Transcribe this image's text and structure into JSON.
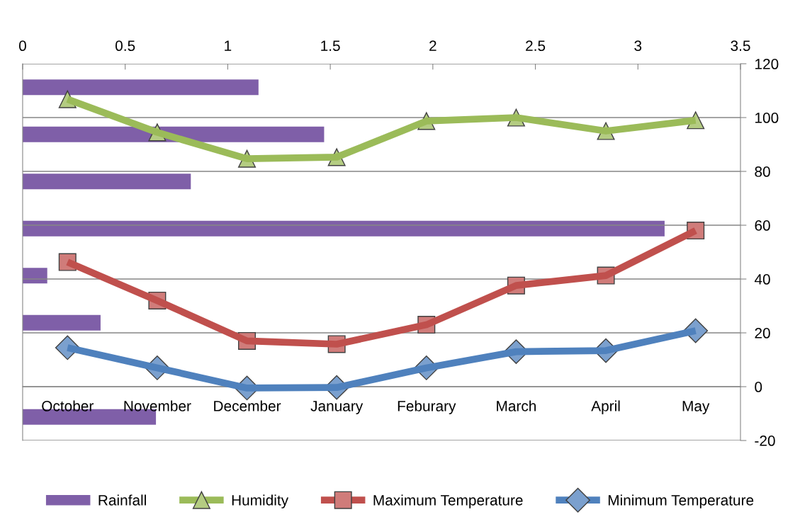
{
  "chart_data": [
    {
      "type": "bar",
      "orientation": "horizontal",
      "categories": [
        null,
        null,
        null,
        null,
        null,
        null,
        null,
        null
      ],
      "series": [
        {
          "name": "Rainfall",
          "color": "#7f5fa8",
          "values": [
            1.15,
            1.47,
            0.82,
            3.13,
            0.12,
            0.38,
            0,
            0.65
          ]
        }
      ],
      "xlim": [
        0,
        3.5
      ],
      "xticks": [
        0,
        0.5,
        1,
        1.5,
        2,
        2.5,
        3,
        3.5
      ],
      "tick_labels": "x",
      "legend": "bottom"
    },
    {
      "type": "line",
      "categories": [
        "October",
        "November",
        "December",
        "January",
        "Feburary",
        "March",
        "April",
        "May"
      ],
      "series": [
        {
          "name": "Humidity",
          "color": "#9bbb59",
          "marker": "triangle",
          "values": [
            106.8,
            94.5,
            84.7,
            85.3,
            98.7,
            100,
            95,
            99
          ]
        },
        {
          "name": "Maximum Temperature",
          "color": "#c0504d",
          "marker": "square",
          "values": [
            46.3,
            32,
            17,
            15.8,
            23,
            37.6,
            41.3,
            58
          ]
        },
        {
          "name": "Minimum Temperature",
          "color": "#4f81bd",
          "marker": "diamond",
          "values": [
            14.5,
            7,
            -0.5,
            -0.3,
            7,
            13,
            13.4,
            20.8
          ]
        }
      ],
      "ylim": [
        -20,
        120
      ],
      "yticks": [
        -20,
        0,
        20,
        40,
        60,
        80,
        100,
        120
      ],
      "grid": "y",
      "legend": "bottom"
    }
  ]
}
